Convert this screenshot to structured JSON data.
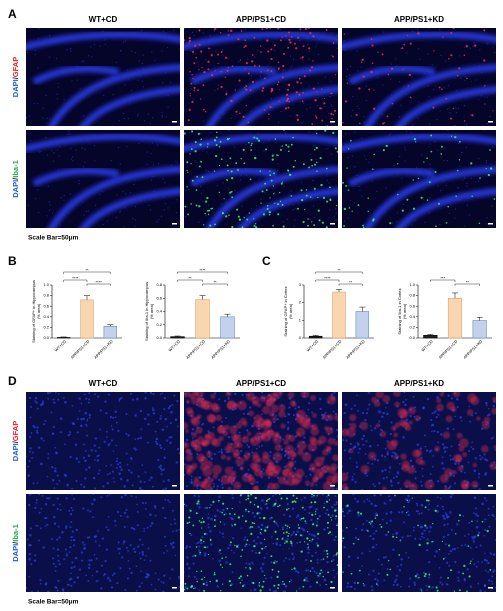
{
  "panel_a": {
    "label": "A",
    "columns": [
      "WT+CD",
      "APP/PS1+CD",
      "APP/PS1+KD"
    ],
    "rows": [
      {
        "dapi": "DAPI",
        "sep": "/",
        "stain": "GFAP"
      },
      {
        "dapi": "DAPI",
        "sep": "/",
        "stain": "Iba-1"
      }
    ],
    "scale_bar": "Scale Bar=50μm"
  },
  "panel_b": {
    "label": "B"
  },
  "panel_c": {
    "label": "C"
  },
  "panel_d": {
    "label": "D",
    "columns": [
      "WT+CD",
      "APP/PS1+CD",
      "APP/PS1+KD"
    ],
    "rows": [
      {
        "dapi": "DAPI",
        "sep": "/",
        "stain": "GFAP"
      },
      {
        "dapi": "DAPI",
        "sep": "/",
        "stain": "Iba-1"
      }
    ],
    "scale_bar": "Scale Bar=50μm"
  },
  "chart_data": [
    {
      "type": "bar",
      "ylabel": [
        "Staining of GFAP+ in Hippocampus",
        "(% area)"
      ],
      "categories": [
        "WT+CD",
        "APP/PS1+CD",
        "APP/PS1+KD"
      ],
      "values": [
        0.01,
        0.72,
        0.22
      ],
      "errors": [
        0.01,
        0.08,
        0.03
      ],
      "colors": [
        "#222222",
        "#f8d6b0",
        "#c3d2ea"
      ],
      "ylim": [
        0,
        1.0
      ],
      "yticks": [
        {
          "value": 0,
          "label": "0.0"
        },
        {
          "value": 0.2,
          "label": "0.2"
        },
        {
          "value": 0.4,
          "label": "0.4"
        },
        {
          "value": 0.6,
          "label": "0.6"
        },
        {
          "value": 0.8,
          "label": "0.8"
        },
        {
          "value": 1.0,
          "label": "1.0"
        }
      ],
      "annotations": [
        {
          "text": "****",
          "pair": [
            0,
            1
          ]
        },
        {
          "text": "****",
          "pair": [
            1,
            2
          ]
        },
        {
          "text": "**",
          "pair": [
            0,
            2
          ]
        }
      ]
    },
    {
      "type": "bar",
      "ylabel": [
        "Staining of Iba-1 in Hippocampus",
        "(% area)"
      ],
      "categories": [
        "WT+CD",
        "APP/PS1+CD",
        "APP/PS1+KD"
      ],
      "values": [
        0.02,
        0.58,
        0.32
      ],
      "errors": [
        0.01,
        0.06,
        0.04
      ],
      "colors": [
        "#222222",
        "#f8d6b0",
        "#c3d2ea"
      ],
      "ylim": [
        0,
        0.8
      ],
      "yticks": [
        {
          "value": 0,
          "label": "0.0"
        },
        {
          "value": 0.2,
          "label": "0.2"
        },
        {
          "value": 0.4,
          "label": "0.4"
        },
        {
          "value": 0.6,
          "label": "0.6"
        },
        {
          "value": 0.8,
          "label": "0.8"
        }
      ],
      "annotations": [
        {
          "text": "**",
          "pair": [
            0,
            1
          ]
        },
        {
          "text": "**",
          "pair": [
            1,
            2
          ]
        },
        {
          "text": "****",
          "pair": [
            0,
            2
          ]
        }
      ]
    },
    {
      "type": "bar",
      "ylabel": [
        "Staining of GFAP+ in Cortex",
        "(% area)"
      ],
      "categories": [
        "WT+CD",
        "APP/PS1+CD",
        "APP/PS1+KD"
      ],
      "values": [
        0.1,
        2.6,
        1.5
      ],
      "errors": [
        0.05,
        0.15,
        0.25
      ],
      "colors": [
        "#222222",
        "#f8d6b0",
        "#c3d2ea"
      ],
      "ylim": [
        0,
        3
      ],
      "yticks": [
        0,
        1,
        2,
        3
      ],
      "annotations": [
        {
          "text": "****",
          "pair": [
            0,
            1
          ]
        },
        {
          "text": "**",
          "pair": [
            1,
            2
          ]
        },
        {
          "text": "**",
          "pair": [
            0,
            2
          ]
        }
      ]
    },
    {
      "type": "bar",
      "ylabel": [
        "Staining of Iba-1 in Cortex",
        "(% area)"
      ],
      "categories": [
        "WT+CD",
        "APP/PS1+CD",
        "APP/PS1+KD"
      ],
      "values": [
        0.05,
        0.75,
        0.33
      ],
      "errors": [
        0.02,
        0.1,
        0.06
      ],
      "colors": [
        "#222222",
        "#f8d6b0",
        "#c3d2ea"
      ],
      "ylim": [
        0,
        1.0
      ],
      "yticks": [
        {
          "value": 0,
          "label": "0.0"
        },
        {
          "value": 0.2,
          "label": "0.2"
        },
        {
          "value": 0.4,
          "label": "0.4"
        },
        {
          "value": 0.6,
          "label": "0.6"
        },
        {
          "value": 0.8,
          "label": "0.8"
        },
        {
          "value": 1.0,
          "label": "1.0"
        }
      ],
      "annotations": [
        {
          "text": "***",
          "pair": [
            0,
            1
          ]
        },
        {
          "text": "**",
          "pair": [
            1,
            2
          ]
        }
      ]
    }
  ]
}
